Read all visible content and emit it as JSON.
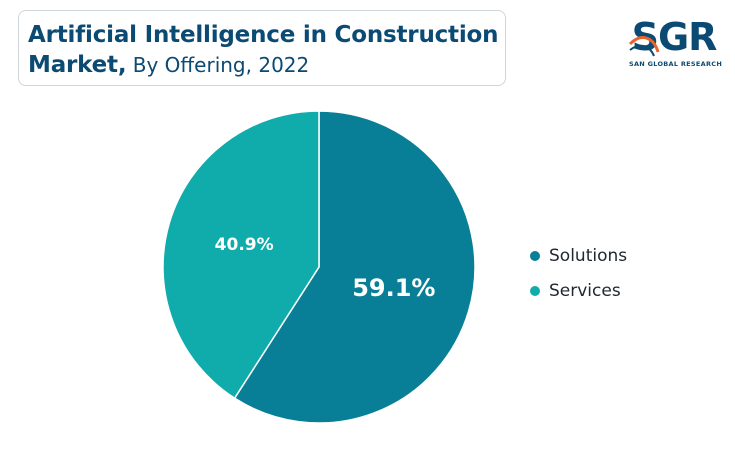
{
  "header": {
    "title_line1": "Artificial Intelligence in Construction",
    "title_line2_bold": "Market,",
    "title_line2_sub": " By Offering, 2022"
  },
  "brand": {
    "logo_text": "SGR",
    "logo_tagline": "SAN GLOBAL RESEARCH",
    "logo_color": "#0b4a72",
    "logo_accent": "#e8642c"
  },
  "chart_data": {
    "type": "pie",
    "title": "Artificial Intelligence in Construction Market, By Offering, 2022",
    "categories": [
      "Solutions",
      "Services"
    ],
    "values": [
      59.1,
      40.9
    ],
    "labels": [
      "59.1%",
      "40.9%"
    ],
    "colors": [
      "#087f96",
      "#10abab"
    ],
    "legend_position": "right"
  }
}
